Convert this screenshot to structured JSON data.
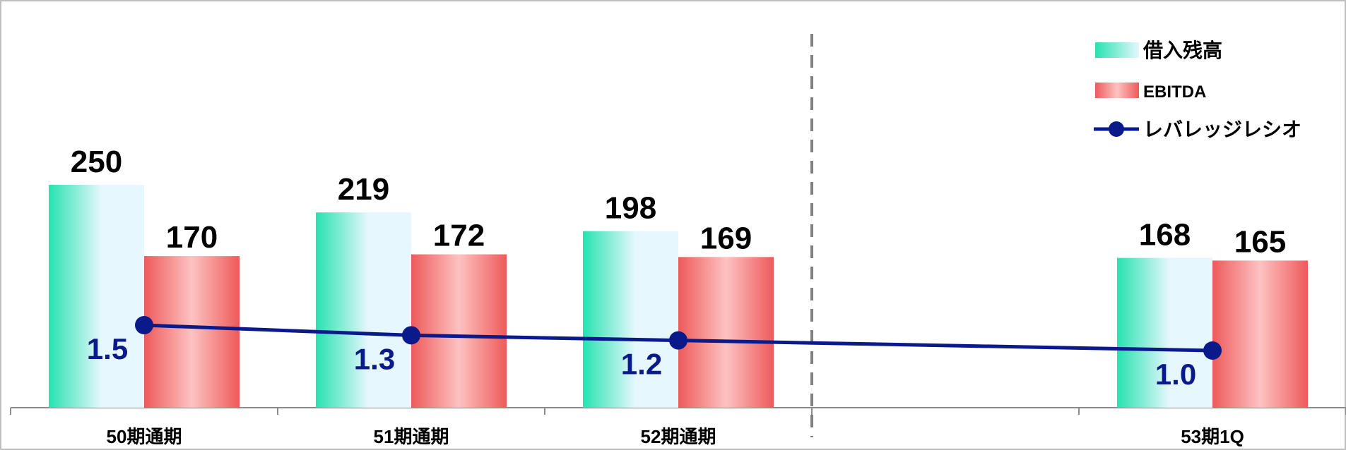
{
  "chart_data": {
    "type": "bar",
    "categories": [
      "50期通期",
      "51期通期",
      "52期通期",
      "",
      "53期1Q"
    ],
    "series": [
      {
        "name": "借入残高",
        "kind": "bar",
        "values": [
          250,
          219,
          198,
          null,
          168
        ],
        "color": "#34e3b4"
      },
      {
        "name": "EBITDA",
        "kind": "bar",
        "values": [
          170,
          172,
          169,
          null,
          165
        ],
        "color": "#ef6a6a"
      },
      {
        "name": "レバレッジレシオ",
        "kind": "line",
        "values": [
          1.5,
          1.3,
          1.2,
          null,
          1.0
        ],
        "color": "#0b1a8a"
      }
    ],
    "title": "",
    "xlabel": "",
    "ylabel": "",
    "ylim": [
      0,
      270
    ],
    "y2lim": [
      -3.4,
      5.7
    ],
    "legend_position": "top-right",
    "divider_after_category": 3,
    "grid": false
  }
}
